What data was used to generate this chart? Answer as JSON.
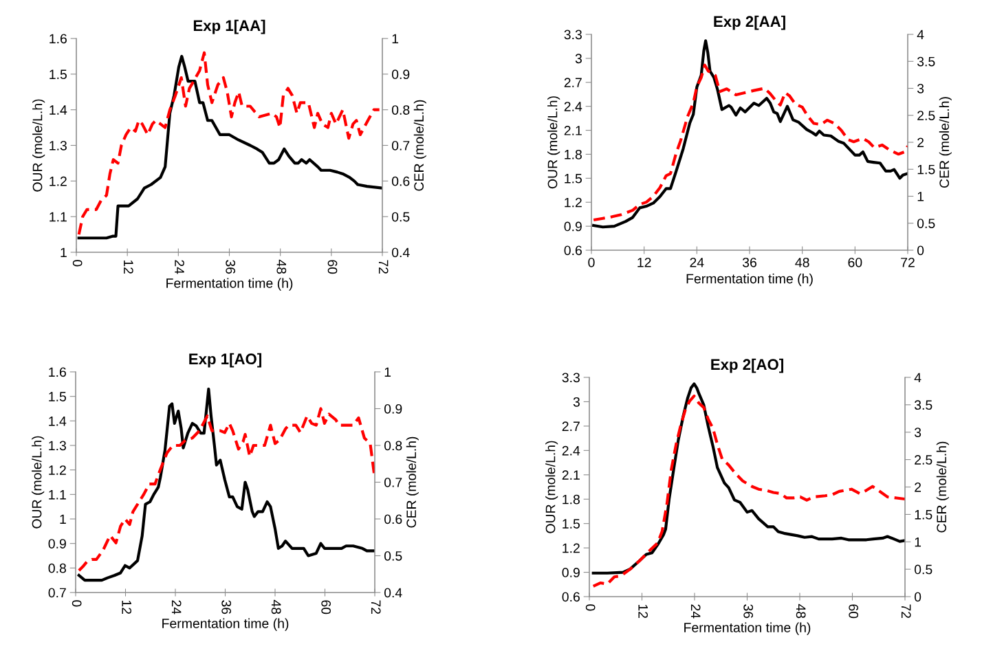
{
  "chart_data": [
    {
      "type": "line",
      "title": "Exp 1[AA]",
      "xlabel": "Fermentation time (h)",
      "ylabel": "OUR (mole/L.h)",
      "y2label": "CER (mole/L.h)",
      "xlim": [
        0,
        72
      ],
      "xticks": [
        0,
        12,
        24,
        36,
        48,
        60,
        72
      ],
      "ylim": [
        1,
        1.6
      ],
      "yticks": [
        1,
        1.1,
        1.2,
        1.3,
        1.4,
        1.5,
        1.6
      ],
      "y2lim": [
        0.4,
        1
      ],
      "y2ticks": [
        0.4,
        0.5,
        0.6,
        0.7,
        0.8,
        0.9,
        1
      ],
      "grid": false,
      "series": [
        {
          "color": "#000000",
          "line_style": "solid",
          "x": [
            0.6,
            4.7,
            7.1,
            8.5,
            9.3,
            9.8,
            12.3,
            14.4,
            16.0,
            17.6,
            19.8,
            20.9,
            22.0,
            23.0,
            24.1,
            24.8,
            25.5,
            26.3,
            27.9,
            29.0,
            29.8,
            30.9,
            31.9,
            33.8,
            36.0,
            38.2,
            40.9,
            42.5,
            43.8,
            45.4,
            46.5,
            47.6,
            48.9,
            50.0,
            51.4,
            52.2,
            53.0,
            54.1,
            54.9,
            56.8,
            57.6,
            59.7,
            61.4,
            62.7,
            64.3,
            65.4,
            66.2,
            68.4,
            72.0
          ],
          "values": [
            1.04,
            1.04,
            1.04,
            1.045,
            1.045,
            1.13,
            1.13,
            1.15,
            1.18,
            1.19,
            1.21,
            1.24,
            1.39,
            1.44,
            1.52,
            1.55,
            1.52,
            1.48,
            1.48,
            1.42,
            1.42,
            1.37,
            1.37,
            1.33,
            1.33,
            1.315,
            1.3,
            1.29,
            1.28,
            1.25,
            1.25,
            1.26,
            1.29,
            1.27,
            1.25,
            1.25,
            1.26,
            1.25,
            1.26,
            1.24,
            1.23,
            1.23,
            1.225,
            1.22,
            1.21,
            1.2,
            1.19,
            1.185,
            1.18
          ]
        },
        {
          "color": "#ff0000",
          "line_style": "dashed",
          "axis": "y2",
          "x": [
            0.6,
            1.5,
            2.5,
            4.7,
            5.8,
            7.1,
            7.9,
            8.7,
            9.8,
            10.6,
            11.7,
            12.8,
            13.9,
            14.7,
            15.5,
            16.8,
            17.9,
            18.7,
            19.8,
            20.9,
            22.0,
            23.3,
            24.7,
            25.7,
            26.6,
            27.6,
            29.0,
            30.1,
            30.9,
            31.9,
            33.3,
            34.6,
            35.5,
            36.5,
            37.3,
            38.2,
            39.0,
            40.9,
            43.0,
            46.0,
            47.1,
            47.9,
            48.7,
            49.8,
            50.8,
            51.9,
            52.7,
            54.6,
            56.0,
            56.8,
            57.9,
            59.2,
            60.0,
            61.1,
            62.7,
            64.1,
            65.1,
            65.9,
            66.8,
            68.6,
            70.0,
            71.3
          ],
          "values": [
            0.45,
            0.5,
            0.52,
            0.52,
            0.545,
            0.56,
            0.62,
            0.66,
            0.65,
            0.7,
            0.73,
            0.75,
            0.74,
            0.77,
            0.76,
            0.73,
            0.76,
            0.77,
            0.76,
            0.75,
            0.8,
            0.84,
            0.89,
            0.81,
            0.86,
            0.88,
            0.91,
            0.96,
            0.87,
            0.82,
            0.87,
            0.89,
            0.85,
            0.78,
            0.82,
            0.85,
            0.81,
            0.81,
            0.78,
            0.79,
            0.78,
            0.75,
            0.84,
            0.86,
            0.84,
            0.79,
            0.82,
            0.82,
            0.75,
            0.79,
            0.76,
            0.75,
            0.79,
            0.76,
            0.8,
            0.72,
            0.76,
            0.77,
            0.73,
            0.77,
            0.8,
            0.8
          ]
        }
      ]
    },
    {
      "type": "line",
      "title": "Exp 2[AA]",
      "xlabel": "Fermentation time (h)",
      "ylabel": "OUR (mole/L.h)",
      "y2label": "CER (mole/L.h)",
      "xlim": [
        0,
        72
      ],
      "xticks": [
        0,
        12,
        24,
        36,
        48,
        60,
        72
      ],
      "ylim": [
        0.6,
        3.3
      ],
      "yticks": [
        0.6,
        0.9,
        1.2,
        1.5,
        1.8,
        2.1,
        2.4,
        2.7,
        3,
        3.3
      ],
      "y2lim": [
        0,
        4
      ],
      "y2ticks": [
        0,
        0.5,
        1,
        1.5,
        2,
        2.5,
        3,
        3.5,
        4
      ],
      "grid": false,
      "series": [
        {
          "color": "#000000",
          "line_style": "solid",
          "x": [
            0.5,
            2.6,
            5.2,
            7.8,
            9.4,
            11.0,
            12.5,
            14.1,
            15.6,
            17.0,
            18.0,
            19.3,
            20.9,
            22.4,
            23.2,
            24.0,
            25.0,
            25.6,
            26.0,
            26.5,
            27.0,
            27.9,
            28.7,
            29.7,
            31.3,
            31.8,
            32.9,
            33.9,
            35.0,
            37.0,
            38.1,
            39.9,
            40.7,
            41.5,
            42.3,
            43.0,
            44.6,
            45.9,
            47.2,
            49.0,
            50.3,
            51.1,
            51.9,
            52.9,
            54.5,
            56.3,
            57.4,
            60.0,
            61.0,
            61.8,
            62.9,
            64.2,
            65.7,
            67.0,
            68.1,
            68.9,
            70.2,
            70.9,
            72.0
          ],
          "values": [
            0.91,
            0.89,
            0.9,
            0.96,
            1.01,
            1.13,
            1.15,
            1.19,
            1.27,
            1.37,
            1.37,
            1.59,
            1.87,
            2.19,
            2.3,
            2.64,
            2.79,
            3.1,
            3.22,
            3.07,
            2.84,
            2.76,
            2.61,
            2.36,
            2.41,
            2.39,
            2.29,
            2.38,
            2.33,
            2.44,
            2.41,
            2.5,
            2.44,
            2.33,
            2.31,
            2.21,
            2.4,
            2.23,
            2.2,
            2.11,
            2.07,
            2.04,
            2.09,
            2.04,
            2.03,
            1.96,
            1.94,
            1.79,
            1.79,
            1.83,
            1.71,
            1.7,
            1.69,
            1.59,
            1.59,
            1.61,
            1.5,
            1.54,
            1.56
          ]
        },
        {
          "color": "#ff0000",
          "line_style": "dashed",
          "axis": "y2",
          "x": [
            0.5,
            2.6,
            4.7,
            6.8,
            9.4,
            11.0,
            12.5,
            14.1,
            15.6,
            17.0,
            18.0,
            19.3,
            20.3,
            21.9,
            23.2,
            24.0,
            25.0,
            25.8,
            26.6,
            28.2,
            29.2,
            30.8,
            32.9,
            35.0,
            37.0,
            39.4,
            40.7,
            42.0,
            43.0,
            44.1,
            45.1,
            46.4,
            48.0,
            49.3,
            50.6,
            52.2,
            53.7,
            55.3,
            56.9,
            58.4,
            59.7,
            61.8,
            63.1,
            64.4,
            66.2,
            67.8,
            69.9,
            71.2,
            72.0
          ],
          "values": [
            0.56,
            0.59,
            0.62,
            0.66,
            0.74,
            0.85,
            0.89,
            1.0,
            1.16,
            1.38,
            1.42,
            1.8,
            2.03,
            2.48,
            2.73,
            3.03,
            3.2,
            3.43,
            3.32,
            3.24,
            2.94,
            2.99,
            2.88,
            2.92,
            2.96,
            3.0,
            2.9,
            2.77,
            2.69,
            2.92,
            2.86,
            2.71,
            2.65,
            2.48,
            2.35,
            2.33,
            2.41,
            2.35,
            2.22,
            2.05,
            2.01,
            2.07,
            2.01,
            1.9,
            1.95,
            1.86,
            1.78,
            1.82,
            1.93
          ]
        }
      ]
    },
    {
      "type": "line",
      "title": "Exp 1[AO]",
      "xlabel": "Fermentation time (h)",
      "ylabel": "OUR (mole/L.h)",
      "y2label": "CER (mole/L.h)",
      "xlim": [
        0,
        72
      ],
      "xticks": [
        0,
        12,
        24,
        36,
        48,
        60,
        72
      ],
      "ylim": [
        0.7,
        1.6
      ],
      "yticks": [
        0.7,
        0.8,
        0.9,
        1,
        1.1,
        1.2,
        1.3,
        1.4,
        1.5,
        1.6
      ],
      "y2lim": [
        0.4,
        1
      ],
      "y2ticks": [
        0.4,
        0.5,
        0.6,
        0.7,
        0.8,
        0.9,
        1
      ],
      "grid": false,
      "series": [
        {
          "color": "#000000",
          "line_style": "solid",
          "x": [
            0.8,
            2.2,
            3.9,
            6.3,
            7.7,
            9.4,
            10.8,
            11.9,
            13.0,
            14.9,
            16.0,
            16.8,
            17.9,
            18.8,
            19.9,
            20.4,
            21.5,
            22.6,
            23.2,
            23.8,
            24.7,
            25.4,
            25.9,
            27.0,
            28.1,
            29.0,
            30.1,
            30.9,
            31.7,
            32.0,
            32.6,
            33.4,
            33.9,
            34.8,
            35.9,
            37.0,
            37.8,
            38.9,
            40.0,
            40.8,
            41.4,
            42.5,
            43.0,
            43.9,
            45.0,
            46.1,
            46.9,
            48.0,
            48.8,
            49.7,
            50.5,
            52.1,
            53.5,
            54.9,
            56.0,
            57.9,
            59.0,
            59.9,
            61.2,
            62.6,
            64.0,
            65.1,
            66.8,
            69.0,
            70.1,
            72.0
          ],
          "values": [
            0.77,
            0.75,
            0.75,
            0.75,
            0.76,
            0.77,
            0.78,
            0.81,
            0.8,
            0.83,
            0.93,
            1.06,
            1.07,
            1.1,
            1.13,
            1.17,
            1.28,
            1.46,
            1.47,
            1.39,
            1.44,
            1.37,
            1.29,
            1.35,
            1.39,
            1.38,
            1.35,
            1.35,
            1.48,
            1.53,
            1.42,
            1.3,
            1.22,
            1.24,
            1.16,
            1.09,
            1.09,
            1.05,
            1.04,
            1.15,
            1.12,
            1.03,
            1.01,
            1.03,
            1.03,
            1.07,
            1.05,
            0.96,
            0.88,
            0.89,
            0.91,
            0.88,
            0.88,
            0.88,
            0.85,
            0.86,
            0.9,
            0.88,
            0.88,
            0.88,
            0.88,
            0.89,
            0.89,
            0.88,
            0.87,
            0.87
          ]
        },
        {
          "color": "#ff0000",
          "line_style": "dashed",
          "axis": "y2",
          "x": [
            0.8,
            1.7,
            2.8,
            3.9,
            5.0,
            6.6,
            8.3,
            9.7,
            10.8,
            11.9,
            13.0,
            13.8,
            14.9,
            16.3,
            17.7,
            19.1,
            20.4,
            22.0,
            23.4,
            25.1,
            26.5,
            28.1,
            29.8,
            31.7,
            32.8,
            34.8,
            35.9,
            37.0,
            37.8,
            39.2,
            40.3,
            40.8,
            41.9,
            42.8,
            44.1,
            45.5,
            46.9,
            48.0,
            49.1,
            50.5,
            51.3,
            53.0,
            54.1,
            55.7,
            56.8,
            57.9,
            59.0,
            59.9,
            61.0,
            62.6,
            63.4,
            65.1,
            66.8,
            68.1,
            69.5,
            70.9,
            72.0
          ],
          "values": [
            0.46,
            0.47,
            0.485,
            0.49,
            0.49,
            0.515,
            0.555,
            0.535,
            0.58,
            0.6,
            0.585,
            0.62,
            0.64,
            0.665,
            0.695,
            0.695,
            0.735,
            0.78,
            0.8,
            0.8,
            0.815,
            0.82,
            0.84,
            0.88,
            0.84,
            0.84,
            0.835,
            0.86,
            0.84,
            0.79,
            0.81,
            0.83,
            0.77,
            0.8,
            0.8,
            0.8,
            0.855,
            0.805,
            0.815,
            0.845,
            0.855,
            0.855,
            0.835,
            0.88,
            0.86,
            0.855,
            0.9,
            0.86,
            0.885,
            0.87,
            0.855,
            0.855,
            0.855,
            0.875,
            0.82,
            0.805,
            0.71
          ]
        }
      ]
    },
    {
      "type": "line",
      "title": "Exp 2[AO]",
      "xlabel": "Fermentation time (h)",
      "ylabel": "OUR (mole/L.h)",
      "y2label": "CER (mole/L.h)",
      "xlim": [
        0,
        72
      ],
      "xticks": [
        0,
        12,
        24,
        36,
        48,
        60,
        72
      ],
      "ylim": [
        0.6,
        3.3
      ],
      "yticks": [
        0.6,
        0.9,
        1.2,
        1.5,
        1.8,
        2.1,
        2.4,
        2.7,
        3,
        3.3
      ],
      "y2lim": [
        0,
        4
      ],
      "y2ticks": [
        0,
        0.5,
        1,
        1.5,
        2,
        2.5,
        3,
        3.5,
        4
      ],
      "grid": false,
      "series": [
        {
          "color": "#000000",
          "line_style": "solid",
          "x": [
            0.9,
            4.1,
            7.7,
            9.3,
            11.4,
            13.0,
            14.3,
            15.6,
            16.9,
            17.4,
            18.2,
            19.3,
            20.3,
            21.4,
            22.4,
            23.2,
            23.9,
            24.5,
            25.0,
            26.1,
            27.1,
            28.2,
            29.2,
            30.8,
            31.8,
            33.1,
            34.4,
            36.0,
            37.1,
            38.6,
            40.7,
            42.0,
            43.1,
            44.4,
            47.5,
            49.1,
            50.7,
            52.3,
            55.4,
            57.5,
            59.1,
            63.2,
            64.8,
            66.9,
            68.0,
            69.0,
            70.8,
            72.0
          ],
          "values": [
            0.89,
            0.89,
            0.9,
            0.94,
            1.04,
            1.12,
            1.14,
            1.24,
            1.36,
            1.43,
            1.8,
            2.19,
            2.53,
            2.82,
            3.04,
            3.17,
            3.22,
            3.17,
            3.1,
            2.96,
            2.7,
            2.45,
            2.19,
            2.0,
            1.94,
            1.79,
            1.76,
            1.64,
            1.66,
            1.56,
            1.46,
            1.46,
            1.4,
            1.38,
            1.35,
            1.33,
            1.34,
            1.31,
            1.31,
            1.32,
            1.3,
            1.3,
            1.31,
            1.32,
            1.34,
            1.32,
            1.28,
            1.29
          ]
        },
        {
          "color": "#ff0000",
          "line_style": "dashed",
          "axis": "y2",
          "x": [
            0.9,
            2.5,
            4.1,
            5.7,
            7.2,
            9.3,
            11.4,
            13.5,
            15.6,
            16.6,
            17.7,
            18.7,
            19.8,
            20.8,
            21.9,
            22.9,
            23.9,
            25.0,
            26.1,
            27.1,
            28.2,
            29.2,
            30.3,
            31.8,
            33.4,
            35.0,
            37.1,
            38.6,
            40.2,
            42.0,
            43.6,
            45.0,
            46.5,
            48.1,
            49.6,
            51.2,
            53.8,
            55.4,
            57.0,
            59.8,
            61.7,
            63.2,
            64.6,
            65.9,
            68.0,
            70.1,
            72.0
          ],
          "values": [
            0.19,
            0.25,
            0.23,
            0.36,
            0.38,
            0.5,
            0.65,
            0.82,
            0.98,
            1.19,
            1.69,
            2.32,
            2.78,
            3.11,
            3.41,
            3.57,
            3.66,
            3.53,
            3.45,
            3.24,
            3.07,
            2.78,
            2.51,
            2.4,
            2.24,
            2.11,
            2.01,
            1.96,
            1.94,
            1.9,
            1.88,
            1.8,
            1.8,
            1.82,
            1.76,
            1.82,
            1.84,
            1.86,
            1.92,
            1.96,
            1.88,
            1.94,
            2.01,
            1.94,
            1.82,
            1.8,
            1.78
          ]
        }
      ]
    }
  ]
}
